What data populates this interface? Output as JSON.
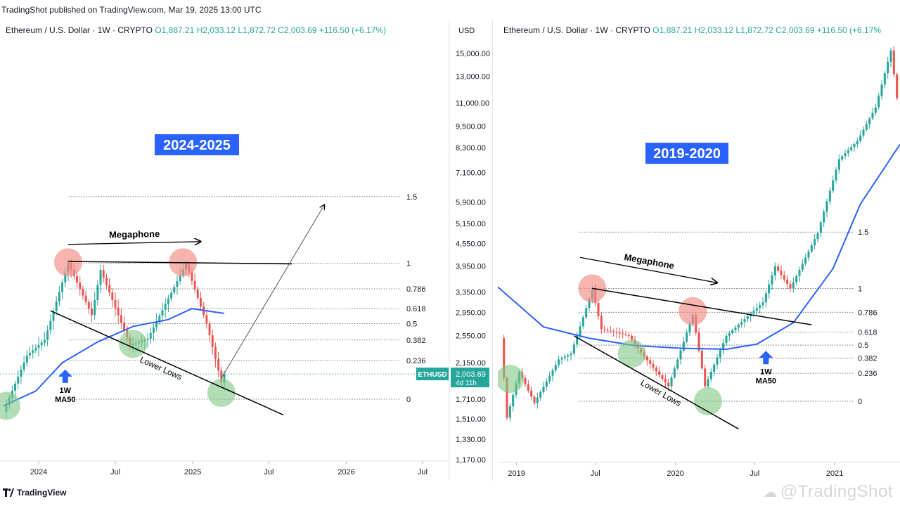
{
  "publisher_line": "TradingShot published on TradingView.com, Mar 19, 2025 13:00 UTC",
  "footer": {
    "logo_text": "TradingView",
    "watermark": "@TradingShot"
  },
  "colors": {
    "up": "#26a69a",
    "down": "#ef5350",
    "ma": "#2962ff",
    "label_bg": "#2962ff",
    "price_tag": "#26a69a",
    "red_circle": "#f28b82",
    "green_circle": "#81c784"
  },
  "chart_data": [
    {
      "type": "candlestick",
      "header": {
        "symbol": "Ethereum / U.S. Dollar · 1W · CRYPTO",
        "o": "O1,887.21",
        "h": "H2,033.12",
        "l": "L1,872.72",
        "c": "C2,003.69",
        "change": "+116.50 (+6.17%)"
      },
      "period_label": "2024-2025",
      "currency": "USD",
      "y_ticks": [
        "15,000.00",
        "13,000.00",
        "11,000.00",
        "9,500.00",
        "8,300.00",
        "7,100.00",
        "5,900.00",
        "5,150.00",
        "4,550.00",
        "3,950.00",
        "3,350.00",
        "2,950.00",
        "2,550.00",
        "2,150.00",
        "1,710.00",
        "1,510.00",
        "1,330.00",
        "1,170.00"
      ],
      "y_tick_values": [
        15000,
        13000,
        11000,
        9500,
        8300,
        7100,
        5900,
        5150,
        4550,
        3950,
        3350,
        2950,
        2550,
        2150,
        1710,
        1510,
        1330,
        1170
      ],
      "y_scale": "log",
      "ylim": [
        1150,
        16500
      ],
      "x_ticks": [
        "2024",
        "Jul",
        "2025",
        "Jul",
        "2026",
        "Jul"
      ],
      "x_tick_dates": [
        "2024-01-01",
        "2024-07-01",
        "2025-01-01",
        "2025-07-01",
        "2026-01-01",
        "2026-07-01"
      ],
      "xlim": [
        "2023-10-01",
        "2026-09-01"
      ],
      "price_tag": {
        "symbol": "ETHUSD",
        "price": "2,003.69",
        "countdown": "4d 11h",
        "value": 2003.69
      },
      "fib_levels": [
        {
          "label": "1.5",
          "value": 6100
        },
        {
          "label": "1",
          "value": 4020
        },
        {
          "label": "0.786",
          "value": 3420
        },
        {
          "label": "0.618",
          "value": 3020
        },
        {
          "label": "0.5",
          "value": 2750
        },
        {
          "label": "0.382",
          "value": 2480
        },
        {
          "label": "0.236",
          "value": 2180
        },
        {
          "label": "0",
          "value": 1710
        }
      ],
      "annotations": {
        "megaphone": "Megaphone",
        "lower_lows": "Lower Lows",
        "ma_label_1": "1W",
        "ma_label_2": "MA50"
      },
      "anchors": [
        {
          "date": "2023-10-09",
          "price": 1580
        },
        {
          "date": "2023-12-04",
          "price": 2250
        },
        {
          "date": "2024-01-15",
          "price": 2480
        },
        {
          "date": "2024-03-11",
          "price": 4020
        },
        {
          "date": "2024-05-06",
          "price": 2900
        },
        {
          "date": "2024-05-27",
          "price": 3850
        },
        {
          "date": "2024-08-05",
          "price": 2400
        },
        {
          "date": "2024-09-16",
          "price": 2500
        },
        {
          "date": "2024-12-16",
          "price": 4000
        },
        {
          "date": "2025-02-03",
          "price": 2750
        },
        {
          "date": "2025-03-10",
          "price": 1900
        },
        {
          "date": "2025-03-17",
          "price": 2003.69
        }
      ],
      "ma_points": [
        {
          "date": "2023-10-09",
          "price": 1640
        },
        {
          "date": "2023-12-25",
          "price": 1800
        },
        {
          "date": "2024-02-26",
          "price": 2150
        },
        {
          "date": "2024-05-20",
          "price": 2450
        },
        {
          "date": "2024-08-12",
          "price": 2700
        },
        {
          "date": "2024-11-04",
          "price": 2820
        },
        {
          "date": "2024-12-30",
          "price": 3020
        },
        {
          "date": "2025-03-17",
          "price": 2930
        }
      ],
      "red_circles": [
        {
          "date": "2024-03-11",
          "price": 4040
        },
        {
          "date": "2024-12-09",
          "price": 4040
        }
      ],
      "green_circles": [
        {
          "date": "2023-10-16",
          "price": 1640
        },
        {
          "date": "2024-08-12",
          "price": 2420
        },
        {
          "date": "2025-03-10",
          "price": 1780
        }
      ],
      "resistance_line": [
        {
          "date": "2024-03-11",
          "price": 4060
        },
        {
          "date": "2025-08-25",
          "price": 4000
        }
      ],
      "support_line": [
        {
          "date": "2024-01-29",
          "price": 2980
        },
        {
          "date": "2025-08-04",
          "price": 1550
        }
      ],
      "megaphone_arrow": [
        {
          "date": "2024-03-11",
          "price": 4520
        },
        {
          "date": "2025-01-20",
          "price": 4600
        }
      ],
      "target_arrow": [
        {
          "date": "2025-03-10",
          "price": 1950
        },
        {
          "date": "2025-11-10",
          "price": 5800
        }
      ],
      "ma_arrow": {
        "date": "2024-03-04",
        "price": 2060
      }
    },
    {
      "type": "candlestick",
      "header": {
        "symbol": "Ethereum / U.S. Dollar · 1W · CRYPTO",
        "o": "O1,887.21",
        "h": "H2,033.12",
        "l": "L1,872.72",
        "c": "C2,003.69",
        "change": "+116.50 (+6.17%"
      },
      "period_label": "2019-2020",
      "y_scale": "log",
      "x_ticks": [
        "2019",
        "Jul",
        "2020",
        "Jul",
        "2021"
      ],
      "x_tick_dates": [
        "2019-01-01",
        "2019-07-01",
        "2020-01-01",
        "2020-07-01",
        "2021-01-01"
      ],
      "xlim": [
        "2018-11-19",
        "2021-05-31"
      ],
      "fib_levels": [
        {
          "label": "1.5",
          "value": 605
        },
        {
          "label": "1",
          "value": 345
        },
        {
          "label": "0.786",
          "value": 272
        },
        {
          "label": "0.618",
          "value": 223
        },
        {
          "label": "0.5",
          "value": 196
        },
        {
          "label": "0.382",
          "value": 172
        },
        {
          "label": "0.236",
          "value": 148
        },
        {
          "label": "0",
          "value": 112
        }
      ],
      "annotations": {
        "megaphone": "Megaphone",
        "lower_lows": "Lower Lows",
        "ma_label_1": "1W",
        "ma_label_2": "MA50"
      },
      "anchors": [
        {
          "date": "2018-11-26",
          "price": 210
        },
        {
          "date": "2018-12-10",
          "price": 95
        },
        {
          "date": "2019-01-07",
          "price": 150
        },
        {
          "date": "2019-02-11",
          "price": 110
        },
        {
          "date": "2019-04-08",
          "price": 170
        },
        {
          "date": "2019-05-06",
          "price": 180
        },
        {
          "date": "2019-06-24",
          "price": 340
        },
        {
          "date": "2019-07-15",
          "price": 230
        },
        {
          "date": "2019-09-16",
          "price": 215
        },
        {
          "date": "2019-10-21",
          "price": 175
        },
        {
          "date": "2019-12-16",
          "price": 130
        },
        {
          "date": "2020-02-10",
          "price": 265
        },
        {
          "date": "2020-03-09",
          "price": 130
        },
        {
          "date": "2020-04-27",
          "price": 215
        },
        {
          "date": "2020-07-20",
          "price": 300
        },
        {
          "date": "2020-08-17",
          "price": 430
        },
        {
          "date": "2020-09-21",
          "price": 345
        },
        {
          "date": "2020-11-23",
          "price": 600
        },
        {
          "date": "2021-01-11",
          "price": 1250
        },
        {
          "date": "2021-02-22",
          "price": 1500
        },
        {
          "date": "2021-04-05",
          "price": 2100
        },
        {
          "date": "2021-05-10",
          "price": 3700
        },
        {
          "date": "2021-05-24",
          "price": 2300
        }
      ],
      "ma_points": [
        {
          "date": "2018-11-19",
          "price": 350
        },
        {
          "date": "2019-03-04",
          "price": 235
        },
        {
          "date": "2019-06-17",
          "price": 210
        },
        {
          "date": "2019-09-30",
          "price": 195
        },
        {
          "date": "2020-01-13",
          "price": 190
        },
        {
          "date": "2020-04-27",
          "price": 188
        },
        {
          "date": "2020-07-06",
          "price": 198
        },
        {
          "date": "2020-09-28",
          "price": 245
        },
        {
          "date": "2020-12-28",
          "price": 420
        },
        {
          "date": "2021-03-01",
          "price": 800
        },
        {
          "date": "2021-05-31",
          "price": 1450
        }
      ],
      "red_circles": [
        {
          "date": "2019-06-24",
          "price": 345
        },
        {
          "date": "2020-02-10",
          "price": 275
        }
      ],
      "green_circles": [
        {
          "date": "2018-12-17",
          "price": 140
        },
        {
          "date": "2019-09-23",
          "price": 180
        },
        {
          "date": "2020-03-16",
          "price": 112
        }
      ],
      "resistance_line": [
        {
          "date": "2019-06-24",
          "price": 345
        },
        {
          "date": "2020-11-09",
          "price": 240
        }
      ],
      "support_line": [
        {
          "date": "2019-05-13",
          "price": 215
        },
        {
          "date": "2020-05-25",
          "price": 85
        }
      ],
      "megaphone_arrow": [
        {
          "date": "2019-05-27",
          "price": 470
        },
        {
          "date": "2020-04-06",
          "price": 365
        }
      ],
      "ma_arrow": {
        "date": "2020-07-27",
        "price": 185
      }
    }
  ]
}
